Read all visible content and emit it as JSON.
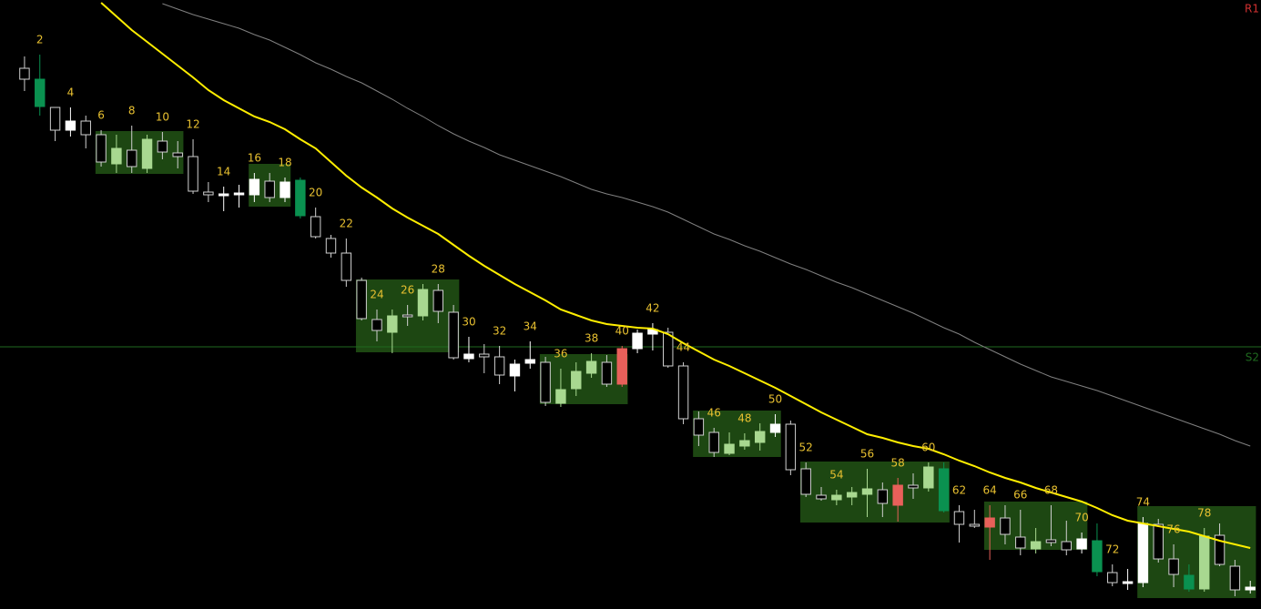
{
  "chart_data": {
    "type": "candlestick",
    "xlim": [
      -0.6,
      81.7
    ],
    "ylim": [
      0,
      669
    ],
    "x": [
      1,
      2,
      3,
      4,
      5,
      6,
      7,
      8,
      9,
      10,
      11,
      12,
      13,
      14,
      15,
      16,
      17,
      18,
      19,
      20,
      21,
      22,
      23,
      24,
      25,
      26,
      27,
      28,
      29,
      30,
      31,
      32,
      33,
      34,
      35,
      36,
      37,
      38,
      39,
      40,
      41,
      42,
      43,
      44,
      45,
      46,
      47,
      48,
      49,
      50,
      51,
      52,
      53,
      54,
      55,
      56,
      57,
      58,
      59,
      60,
      61,
      62,
      63,
      64,
      65,
      66,
      67,
      68,
      69,
      70,
      71,
      72,
      73,
      74,
      75,
      76,
      77,
      78,
      79,
      80,
      81
    ],
    "open": [
      594,
      582,
      551,
      526,
      536,
      521,
      489,
      504,
      484,
      514,
      501,
      497,
      458,
      454,
      455,
      455,
      470,
      452,
      471,
      431,
      407,
      391,
      361,
      318,
      304,
      323,
      322,
      350,
      326,
      275,
      280,
      277,
      256,
      270,
      271,
      226,
      242,
      259,
      271,
      286,
      286,
      302,
      304,
      267,
      209,
      194,
      171,
      179,
      183,
      194,
      203,
      154,
      125,
      120,
      123,
      126,
      131,
      136,
      136,
      133,
      154,
      107,
      93,
      100,
      100,
      79,
      66,
      76,
      74,
      66,
      75,
      40,
      28,
      29,
      93,
      55,
      37,
      22,
      81,
      47,
      21
    ],
    "high": [
      607,
      609,
      551,
      551,
      542,
      526,
      521,
      531,
      521,
      524,
      514,
      516,
      469,
      464,
      466,
      479,
      479,
      474,
      474,
      441,
      411,
      407,
      364,
      329,
      329,
      334,
      357,
      357,
      334,
      299,
      291,
      289,
      274,
      294,
      277,
      264,
      271,
      281,
      279,
      289,
      307,
      314,
      309,
      271,
      217,
      199,
      194,
      193,
      204,
      214,
      207,
      161,
      134,
      131,
      134,
      154,
      139,
      144,
      149,
      161,
      161,
      114,
      109,
      114,
      114,
      109,
      89,
      114,
      97,
      84,
      94,
      49,
      44,
      101,
      99,
      71,
      49,
      89,
      94,
      54,
      31
    ],
    "low": [
      569,
      542,
      514,
      519,
      506,
      486,
      479,
      479,
      479,
      494,
      484,
      456,
      447,
      437,
      441,
      447,
      447,
      447,
      429,
      407,
      386,
      354,
      317,
      294,
      281,
      311,
      317,
      314,
      274,
      271,
      259,
      247,
      239,
      264,
      223,
      222,
      234,
      254,
      244,
      244,
      281,
      284,
      265,
      203,
      179,
      167,
      169,
      175,
      174,
      189,
      147,
      123,
      119,
      114,
      114,
      101,
      101,
      96,
      121,
      129,
      106,
      73,
      89,
      54,
      71,
      59,
      61,
      69,
      59,
      61,
      36,
      25,
      21,
      24,
      51,
      24,
      19,
      19,
      47,
      14,
      17
    ],
    "close": [
      582,
      552,
      526,
      536,
      521,
      491,
      506,
      486,
      516,
      502,
      497,
      459,
      455,
      456,
      457,
      472,
      452,
      469,
      432,
      409,
      391,
      361,
      319,
      306,
      322,
      321,
      351,
      327,
      276,
      280,
      277,
      257,
      269,
      274,
      227,
      241,
      261,
      272,
      247,
      247,
      303,
      307,
      267,
      209,
      191,
      172,
      181,
      185,
      195,
      203,
      153,
      126,
      121,
      125,
      128,
      132,
      116,
      114,
      133,
      156,
      108,
      93,
      91,
      90,
      82,
      67,
      74,
      73,
      65,
      77,
      41,
      29,
      30,
      94,
      55,
      38,
      22,
      80,
      49,
      21,
      24
    ],
    "candle_fills": [
      null,
      "#0a9150",
      null,
      "#ffffff",
      null,
      null,
      "#a8d890",
      null,
      "#a8d890",
      null,
      null,
      null,
      null,
      "#ffffff",
      "#ffffff",
      "#ffffff",
      null,
      "#ffffff",
      "#0a9150",
      null,
      null,
      null,
      null,
      null,
      "#a8d890",
      null,
      "#a8d890",
      null,
      null,
      "#ffffff",
      null,
      null,
      "#ffffff",
      "#ffffff",
      null,
      "#a8d890",
      "#a8d890",
      "#a8d890",
      null,
      "#e8605a",
      "#ffffff",
      "#ffffff",
      null,
      null,
      null,
      null,
      "#a8d890",
      "#a8d890",
      "#a8d890",
      "#ffffff",
      null,
      null,
      null,
      "#a8d890",
      "#a8d890",
      "#a8d890",
      null,
      "#e8605a",
      null,
      "#a8d890",
      "#0a9150",
      null,
      null,
      "#e8605a",
      null,
      null,
      "#a8d890",
      null,
      null,
      "#ffffff",
      "#0a9150",
      null,
      "#ffffff",
      "#ffffff",
      null,
      null,
      "#0a9150",
      "#a8d890",
      null,
      null,
      "#ffffff"
    ],
    "hollow_color": "#d0d0d0",
    "series": [
      {
        "color": "#ffee00",
        "values": [
          null,
          null,
          null,
          null,
          null,
          666,
          651,
          636,
          623,
          610,
          597,
          584,
          570,
          559,
          550,
          541,
          535,
          527,
          516,
          506,
          491,
          476,
          463,
          452,
          440,
          430,
          421,
          412,
          400,
          388,
          377,
          367,
          357,
          348,
          339,
          329,
          323,
          317,
          313,
          311,
          309,
          308,
          302,
          292,
          283,
          274,
          267,
          259,
          251,
          243,
          234,
          225,
          216,
          208,
          200,
          192,
          188,
          183,
          179,
          176,
          170,
          163,
          157,
          150,
          144,
          139,
          133,
          128,
          123,
          118,
          111,
          103,
          97,
          94,
          91,
          88,
          85,
          80,
          75,
          71,
          67
        ]
      },
      {
        "color": "#808080",
        "values": [
          null,
          null,
          null,
          null,
          null,
          null,
          null,
          null,
          null,
          665,
          659,
          653,
          648,
          643,
          638,
          631,
          625,
          617,
          609,
          600,
          593,
          585,
          578,
          569,
          560,
          550,
          541,
          531,
          522,
          514,
          507,
          499,
          493,
          487,
          481,
          475,
          468,
          461,
          456,
          452,
          447,
          442,
          436,
          428,
          420,
          412,
          406,
          399,
          393,
          386,
          379,
          373,
          366,
          359,
          353,
          346,
          339,
          332,
          325,
          317,
          309,
          302,
          293,
          285,
          277,
          269,
          262,
          255,
          250,
          245,
          240,
          234,
          228,
          222,
          216,
          210,
          204,
          198,
          192,
          185,
          179
        ]
      }
    ],
    "zone_color": "#1d4712",
    "zones": [
      {
        "start": 6,
        "end": 11,
        "top": 525,
        "bottom": 478
      },
      {
        "start": 16,
        "end": 18,
        "top": 489,
        "bottom": 442
      },
      {
        "start": 23,
        "end": 29,
        "top": 362,
        "bottom": 282
      },
      {
        "start": 35,
        "end": 40,
        "top": 280,
        "bottom": 225
      },
      {
        "start": 45,
        "end": 50,
        "top": 218,
        "bottom": 167
      },
      {
        "start": 52,
        "end": 61,
        "top": 162,
        "bottom": 95
      },
      {
        "start": 64,
        "end": 70,
        "top": 118,
        "bottom": 65
      },
      {
        "start": 74,
        "end": 81,
        "top": 113,
        "bottom": 12
      }
    ],
    "levels": [
      {
        "name": "R1",
        "color": "#d03030"
      },
      {
        "name": "S2",
        "value": 288,
        "color": "#1f6a1f"
      }
    ],
    "bar_label_color": "#e8c030",
    "bar_labels": [
      2,
      4,
      6,
      8,
      10,
      12,
      14,
      16,
      18,
      20,
      22,
      24,
      26,
      28,
      30,
      32,
      34,
      36,
      38,
      40,
      42,
      44,
      46,
      48,
      50,
      52,
      54,
      56,
      58,
      60,
      62,
      64,
      66,
      68,
      70,
      72,
      74,
      76,
      78
    ]
  }
}
